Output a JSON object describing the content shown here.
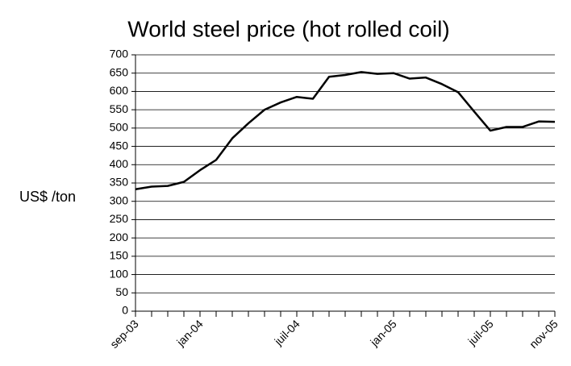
{
  "chart_data": {
    "type": "line",
    "title": "World steel price (hot rolled coil)",
    "y_label": "US$ /ton",
    "categories": [
      "sep-03",
      null,
      null,
      null,
      "jan-04",
      null,
      null,
      null,
      null,
      null,
      "juil-04",
      null,
      null,
      null,
      null,
      null,
      "jan-05",
      null,
      null,
      null,
      null,
      null,
      "juil-05",
      null,
      null,
      null,
      "nov-05"
    ],
    "series": [
      {
        "name": "hot rolled coil",
        "color": "#000000",
        "values": [
          333,
          340,
          342,
          353,
          385,
          413,
          472,
          513,
          550,
          570,
          585,
          580,
          640,
          645,
          653,
          648,
          650,
          635,
          638,
          620,
          598,
          545,
          493,
          503,
          503,
          518,
          517
        ]
      }
    ],
    "ylim": [
      0,
      700
    ],
    "yticks": [
      0,
      50,
      100,
      150,
      200,
      250,
      300,
      350,
      400,
      450,
      500,
      550,
      600,
      650,
      700
    ],
    "grid": true
  }
}
